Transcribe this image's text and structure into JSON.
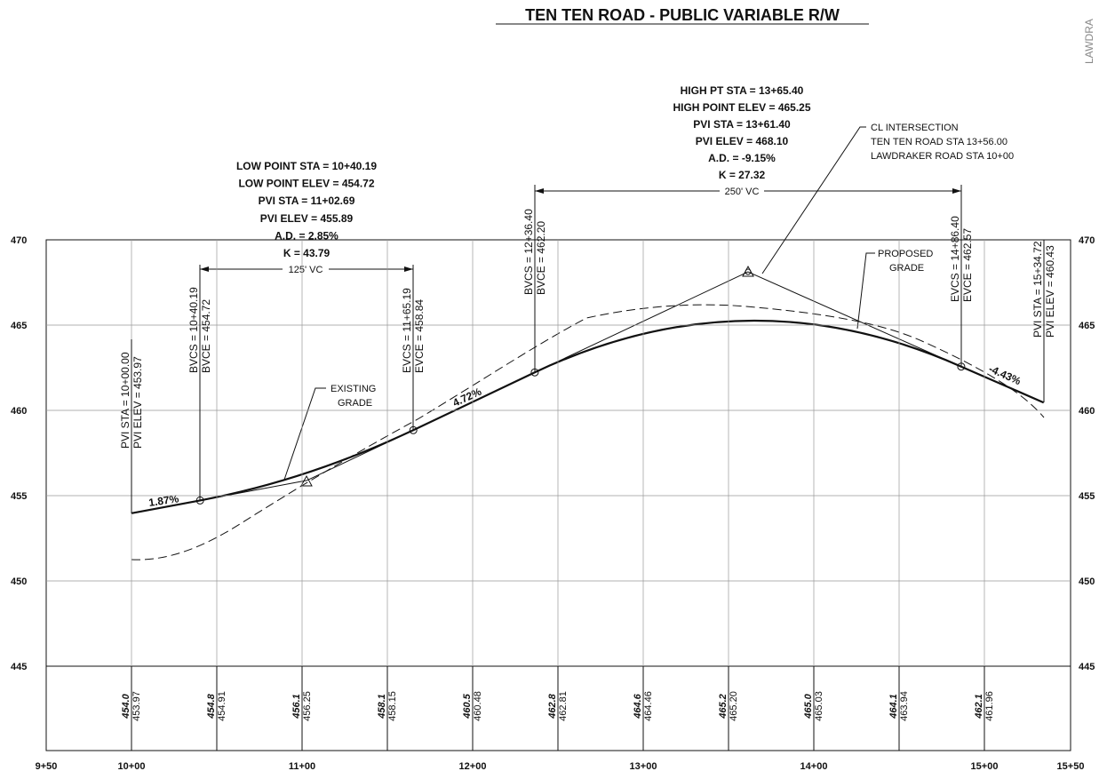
{
  "title": "TEN TEN ROAD - PUBLIC VARIABLE R/W",
  "side_text": "LAWDRA",
  "elevations": [
    "470",
    "465",
    "460",
    "455",
    "450",
    "445"
  ],
  "stations": [
    "9+50",
    "10+00",
    "11+00",
    "12+00",
    "13+00",
    "14+00",
    "15+00",
    "15+50"
  ],
  "low_point": [
    "LOW POINT STA = 10+40.19",
    "LOW POINT ELEV = 454.72",
    "PVI STA = 11+02.69",
    "PVI ELEV = 455.89",
    "A.D. = 2.85%",
    "K = 43.79"
  ],
  "high_point": [
    "HIGH PT STA = 13+65.40",
    "HIGH POINT ELEV = 465.25",
    "PVI STA = 13+61.40",
    "PVI ELEV = 468.10",
    "A.D. = -9.15%",
    "K = 27.32"
  ],
  "cl_intersection": [
    "CL INTERSECTION",
    "TEN TEN ROAD STA 13+56.00",
    "LAWDRAKER ROAD STA 10+00"
  ],
  "vc_lengths": [
    "125' VC",
    "250' VC"
  ],
  "grades": [
    "1.87%",
    "4.72%",
    "-4.43%"
  ],
  "existing_label": [
    "EXISTING",
    "GRADE"
  ],
  "proposed_label": [
    "PROPOSED",
    "GRADE"
  ],
  "vertical_labels": [
    [
      "PVI STA = 10+00.00",
      "PVI ELEV = 453.97"
    ],
    [
      "BVCS = 10+40.19",
      "BVCE = 454.72"
    ],
    [
      "EVCS = 11+65.19",
      "EVCE = 458.84"
    ],
    [
      "BVCS = 12+36.40",
      "BVCE = 462.20"
    ],
    [
      "EVCS = 14+86.40",
      "EVCE = 462.57"
    ],
    [
      "PVI STA = 15+34.72",
      "PVI ELEV = 460.43"
    ]
  ],
  "table": {
    "existing": [
      "454.0",
      "454.8",
      "456.1",
      "458.1",
      "460.5",
      "462.8",
      "464.6",
      "465.2",
      "465.0",
      "464.1",
      "462.1"
    ],
    "proposed": [
      "453.97",
      "454.91",
      "456.25",
      "458.15",
      "460.48",
      "462.81",
      "464.46",
      "465.20",
      "465.03",
      "463.94",
      "461.96"
    ]
  }
}
